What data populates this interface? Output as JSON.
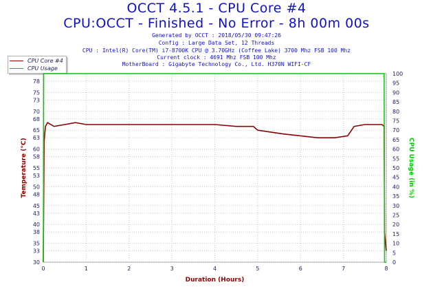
{
  "header": {
    "title": "OCCT 4.5.1 - CPU Core #4",
    "subtitle": "CPU:OCCT - Finished - No Error - 8h 00m 00s",
    "info_lines": [
      "Generated by OCCT : 2018/05/30 09:47:26",
      "Config : Large Data Set, 12 Threads",
      "CPU : Intel(R) Core(TM) i7-8700K CPU @ 3.70GHz (Coffee Lake) 3700 Mhz FSB 100 Mhz",
      "Current clock : 4691 Mhz FSB 100 Mhz",
      "MotherBoard : Gigabyte Technology Co., Ltd. H370N WIFI-CF"
    ]
  },
  "colors": {
    "title": "#1010c8",
    "temperature": "#8b0000",
    "usage": "#00cc00",
    "axis_text": "#202060"
  },
  "chart_data": {
    "type": "line",
    "title": "OCCT 4.5.1 - CPU Core #4",
    "xlabel": "Duration (Hours)",
    "ylabel": "Temperature (°C)",
    "y2label": "CPU Usage (in %)",
    "xlim": [
      0,
      8
    ],
    "ylim": [
      30,
      80
    ],
    "y2lim": [
      0,
      100
    ],
    "x_ticks": [
      "0",
      "1",
      "2",
      "3",
      "4",
      "5",
      "6",
      "7",
      "8"
    ],
    "y_ticks": [
      "30",
      "33",
      "35",
      "38",
      "40",
      "43",
      "45",
      "48",
      "50",
      "53",
      "55",
      "58",
      "60",
      "63",
      "65",
      "68",
      "70",
      "73",
      "75",
      "78"
    ],
    "y2_ticks": [
      "0",
      "5",
      "10",
      "15",
      "20",
      "25",
      "30",
      "35",
      "40",
      "45",
      "50",
      "55",
      "60",
      "65",
      "70",
      "75",
      "80",
      "85",
      "90",
      "95",
      "100"
    ],
    "grid": true,
    "legend": "top-left, outside plot",
    "series": [
      {
        "name": "CPU Core #4",
        "axis": "left",
        "color": "#8b0000",
        "points": [
          [
            0.0,
            30
          ],
          [
            0.02,
            62
          ],
          [
            0.05,
            66
          ],
          [
            0.1,
            67
          ],
          [
            0.25,
            66
          ],
          [
            0.5,
            66.5
          ],
          [
            0.75,
            67
          ],
          [
            1.0,
            66.5
          ],
          [
            1.5,
            66.5
          ],
          [
            2.0,
            66.5
          ],
          [
            2.5,
            66.5
          ],
          [
            3.0,
            66.5
          ],
          [
            3.5,
            66.5
          ],
          [
            4.0,
            66.5
          ],
          [
            4.5,
            66
          ],
          [
            4.9,
            66
          ],
          [
            5.0,
            65
          ],
          [
            5.3,
            64.5
          ],
          [
            5.6,
            64
          ],
          [
            6.0,
            63.5
          ],
          [
            6.4,
            63
          ],
          [
            6.8,
            63
          ],
          [
            7.1,
            63.5
          ],
          [
            7.25,
            66
          ],
          [
            7.5,
            66.5
          ],
          [
            7.9,
            66.5
          ],
          [
            7.95,
            66
          ],
          [
            7.96,
            38
          ],
          [
            8.0,
            33
          ]
        ]
      },
      {
        "name": "CPU Usage",
        "axis": "right",
        "color": "#00cc00",
        "points": [
          [
            0.0,
            0
          ],
          [
            0.01,
            100
          ],
          [
            7.95,
            100
          ],
          [
            7.96,
            0
          ],
          [
            8.0,
            0
          ]
        ]
      }
    ]
  },
  "legend_items": [
    {
      "label": "CPU Core #4"
    },
    {
      "label": "CPU Usage"
    }
  ]
}
